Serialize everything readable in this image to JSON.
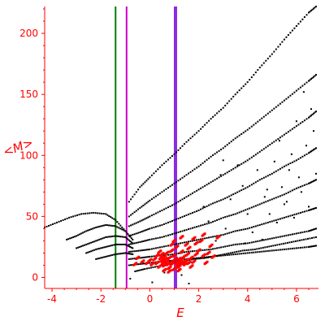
{
  "chart_data": {
    "type": "scatter",
    "title": "",
    "xlabel": "E",
    "ylabel": "<M>",
    "xlim": [
      -4.3,
      6.9
    ],
    "ylim": [
      -9,
      222
    ],
    "axis_color": "#ff0000",
    "x_ticks": [
      "-4",
      "-2",
      "0",
      "2",
      "4",
      "6"
    ],
    "x_tick_values": [
      -4,
      -2,
      0,
      2,
      4,
      6
    ],
    "y_ticks": [
      "0",
      "50",
      "100",
      "150",
      "200"
    ],
    "y_tick_values": [
      0,
      50,
      100,
      150,
      200
    ],
    "vertical_lines": [
      {
        "x": -1.4,
        "color": "#008000"
      },
      {
        "x": -0.95,
        "color": "#cc00cc"
      },
      {
        "x": 1.05,
        "color": "#8a2be2"
      }
    ],
    "series": [
      {
        "color": "#000000",
        "branches": [
          {
            "x": [
              -0.85,
              -0.4,
              0,
              0.5,
              1.0,
              1.5,
              2.0,
              2.5,
              3.0,
              3.5,
              4.0,
              4.5,
              5.0,
              5.5,
              6.0,
              6.5,
              6.8
            ],
            "y": [
              62,
              74,
              82,
              92,
              101,
              111,
              120,
              130,
              139,
              150,
              160,
              172,
              183,
              195,
              206,
              217,
              222
            ]
          },
          {
            "x": [
              -0.85,
              -0.4,
              0,
              0.5,
              1.0,
              1.5,
              2.0,
              2.5,
              3.0,
              3.5,
              4.0,
              4.5,
              5.0,
              5.5,
              6.0,
              6.5,
              6.8
            ],
            "y": [
              50,
              57,
              63,
              70,
              77,
              84,
              91,
              99,
              106,
              114,
              121,
              129,
              137,
              145,
              153,
              161,
              166
            ]
          },
          {
            "x": [
              -0.85,
              -0.4,
              0,
              0.5,
              1.0,
              1.5,
              2.0,
              2.5,
              3.0,
              3.5,
              4.0,
              4.5,
              5.0,
              5.5,
              6.0,
              6.5,
              6.8
            ],
            "y": [
              42,
              46,
              50,
              55,
              60,
              66,
              72,
              78,
              84,
              90,
              96,
              103,
              110,
              117,
              124,
              131,
              136
            ]
          },
          {
            "x": [
              -0.85,
              -0.4,
              0,
              0.5,
              1.0,
              1.5,
              2.0,
              2.5,
              3.0,
              3.5,
              4.0,
              4.5,
              5.0,
              5.5,
              6.0,
              6.5,
              6.8
            ],
            "y": [
              34,
              37,
              40,
              43,
              47,
              51,
              55,
              60,
              64,
              69,
              74,
              80,
              85,
              91,
              96,
              102,
              106
            ]
          },
          {
            "x": [
              -0.85,
              -0.4,
              0,
              0.5,
              1.0,
              1.5,
              2.0,
              2.5,
              3.0,
              3.5,
              4.0,
              4.5,
              5.0,
              5.5,
              6.0,
              6.5,
              6.8
            ],
            "y": [
              27,
              29,
              31,
              33,
              36,
              39,
              42,
              45,
              49,
              52,
              56,
              60,
              64,
              68,
              73,
              77,
              80
            ]
          },
          {
            "x": [
              -0.85,
              -0.4,
              0,
              0.5,
              1.0,
              1.5,
              2.0,
              2.5,
              3.0,
              3.5,
              4.0,
              4.5,
              5.0,
              5.5,
              6.0,
              6.5,
              6.8
            ],
            "y": [
              21,
              22,
              23,
              25,
              27,
              29,
              31,
              33,
              35,
              38,
              40,
              43,
              46,
              49,
              52,
              55,
              57
            ]
          },
          {
            "x": [
              -0.85,
              -0.4,
              0,
              0.5,
              1.0,
              1.5,
              2.0,
              2.5,
              3.0,
              3.5,
              4.0,
              4.5,
              5.0,
              5.5,
              6.0,
              6.5,
              6.8
            ],
            "y": [
              15,
              16,
              17,
              18,
              19,
              21,
              22,
              23,
              25,
              27,
              28,
              30,
              32,
              34,
              36,
              38,
              40
            ]
          },
          {
            "x": [
              -0.85,
              -0.4,
              0,
              0.5,
              1.0,
              1.5,
              2.0,
              2.5,
              3.0,
              3.5,
              4.0,
              4.5,
              5.0,
              5.5,
              6.0,
              6.5,
              6.8
            ],
            "y": [
              10,
              11,
              12,
              13,
              14,
              15,
              16,
              17,
              18,
              19,
              20,
              21,
              22,
              23,
              24,
              25,
              26
            ]
          },
          {
            "x": [
              -0.6,
              -0.2,
              0.3,
              0.8,
              1.3,
              1.8,
              2.3,
              2.8,
              3.3,
              3.8,
              4.3,
              4.8,
              5.3,
              5.8,
              6.3,
              6.8
            ],
            "y": [
              5,
              7,
              9,
              11,
              13,
              15,
              16,
              18,
              20,
              22,
              23,
              25,
              27,
              29,
              31,
              33
            ]
          },
          {
            "x": [
              -4.3,
              -3.8,
              -3.3,
              -2.8,
              -2.3,
              -1.8,
              -1.4,
              -1.0
            ],
            "y": [
              41,
              45,
              49,
              52,
              53,
              52,
              47,
              38
            ]
          },
          {
            "x": [
              -3.4,
              -3.0,
              -2.6,
              -2.2,
              -1.8,
              -1.4,
              -1.0,
              -0.7
            ],
            "y": [
              31,
              34,
              38,
              41,
              43,
              42,
              38,
              31
            ]
          },
          {
            "x": [
              -3.0,
              -2.6,
              -2.2,
              -1.8,
              -1.4,
              -1.0,
              -0.7
            ],
            "y": [
              24,
              27,
              30,
              33,
              34,
              33,
              28
            ]
          },
          {
            "x": [
              -2.6,
              -2.2,
              -1.8,
              -1.4,
              -1.0,
              -0.7
            ],
            "y": [
              20,
              23,
              25,
              27,
              27,
              24
            ]
          },
          {
            "x": [
              -2.2,
              -1.8,
              -1.4,
              -1.0,
              -0.7
            ],
            "y": [
              15,
              17,
              19,
              20,
              19
            ]
          }
        ],
        "extra_points": [
          [
            0.1,
            -4
          ],
          [
            -0.8,
            -1
          ],
          [
            1.6,
            -5
          ],
          [
            0.6,
            4
          ],
          [
            1.3,
            2
          ],
          [
            2.7,
            30
          ],
          [
            3.1,
            40
          ],
          [
            3.9,
            28
          ],
          [
            4.2,
            37
          ],
          [
            4.6,
            31
          ],
          [
            4.9,
            52
          ],
          [
            5.2,
            45
          ],
          [
            5.6,
            62
          ],
          [
            5.9,
            49
          ],
          [
            6.2,
            70
          ],
          [
            6.5,
            58
          ],
          [
            6.1,
            82
          ],
          [
            5.4,
            74
          ],
          [
            4.7,
            66
          ],
          [
            4.4,
            88
          ],
          [
            5.1,
            95
          ],
          [
            5.8,
            101
          ],
          [
            6.4,
            108
          ],
          [
            3.6,
            92
          ],
          [
            3.8,
            75
          ],
          [
            2.9,
            84
          ],
          [
            5.3,
            112
          ],
          [
            6.0,
            128
          ],
          [
            6.6,
            138
          ],
          [
            6.3,
            152
          ],
          [
            6.7,
            120
          ],
          [
            5.7,
            88
          ],
          [
            4.0,
            52
          ],
          [
            3.3,
            64
          ],
          [
            2.4,
            46
          ],
          [
            4.8,
            72
          ],
          [
            5.5,
            60
          ],
          [
            6.8,
            85
          ],
          [
            3.0,
            96
          ],
          [
            2.2,
            58
          ]
        ]
      },
      {
        "color": "#ff0000",
        "points": [
          [
            0.3,
            12
          ],
          [
            0.5,
            14
          ],
          [
            0.6,
            10
          ],
          [
            0.7,
            13
          ],
          [
            0.8,
            16
          ],
          [
            0.9,
            11
          ],
          [
            1.0,
            14
          ],
          [
            1.1,
            12
          ],
          [
            1.2,
            15
          ],
          [
            1.3,
            11
          ],
          [
            1.4,
            13
          ],
          [
            0.4,
            9
          ],
          [
            0.6,
            17
          ],
          [
            0.8,
            8
          ],
          [
            1.0,
            18
          ],
          [
            1.2,
            9
          ],
          [
            1.4,
            17
          ],
          [
            1.5,
            14
          ],
          [
            1.6,
            12
          ],
          [
            1.7,
            16
          ],
          [
            0.2,
            15
          ],
          [
            0.1,
            11
          ],
          [
            0.0,
            14
          ],
          [
            -0.1,
            12
          ],
          [
            -0.3,
            13
          ],
          [
            1.8,
            13
          ],
          [
            1.9,
            19
          ],
          [
            2.0,
            22
          ],
          [
            2.2,
            18
          ],
          [
            2.4,
            20
          ],
          [
            2.6,
            17
          ],
          [
            1.6,
            24
          ],
          [
            1.3,
            21
          ],
          [
            0.9,
            22
          ],
          [
            0.7,
            20
          ],
          [
            0.5,
            19
          ],
          [
            0.4,
            21
          ],
          [
            1.1,
            25
          ],
          [
            1.5,
            27
          ],
          [
            1.9,
            28
          ],
          [
            2.1,
            30
          ],
          [
            2.5,
            26
          ],
          [
            2.8,
            33
          ],
          [
            1.0,
            7
          ],
          [
            0.8,
            5
          ],
          [
            1.2,
            6
          ],
          [
            0.6,
            6
          ],
          [
            -0.5,
            16
          ],
          [
            -0.6,
            11
          ],
          [
            0.3,
            18
          ],
          [
            1.7,
            9
          ],
          [
            2.3,
            12
          ],
          [
            0.95,
            13
          ],
          [
            1.05,
            15
          ],
          [
            1.15,
            10
          ],
          [
            0.85,
            12
          ],
          [
            0.75,
            11
          ],
          [
            1.25,
            13
          ],
          [
            1.35,
            16
          ],
          [
            0.65,
            15
          ],
          [
            0.55,
            12
          ],
          [
            0.45,
            16
          ],
          [
            1.45,
            11
          ],
          [
            1.55,
            19
          ],
          [
            1.0,
            30
          ],
          [
            1.3,
            33
          ],
          [
            0.9,
            27
          ],
          [
            2.2,
            35
          ],
          [
            1.8,
            32
          ]
        ]
      }
    ]
  }
}
